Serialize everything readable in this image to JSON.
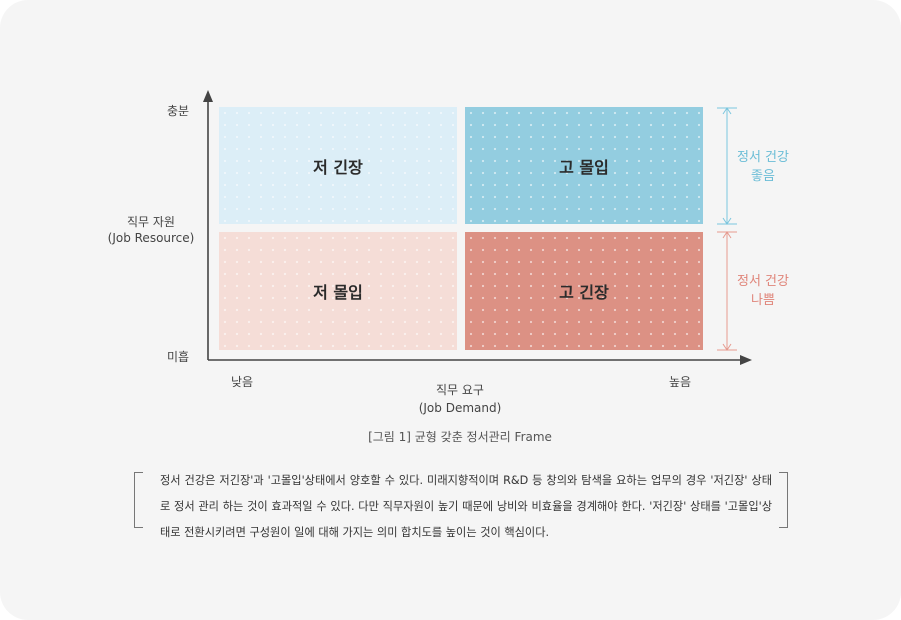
{
  "diagram": {
    "y_axis": {
      "top_label": "충분",
      "bottom_label": "미흡",
      "title_line1": "직무 자원",
      "title_line2": "(Job Resource)"
    },
    "x_axis": {
      "left_label": "낮음",
      "right_label": "높음",
      "title_line1": "직무 요구",
      "title_line2": "(Job Demand)"
    },
    "quadrants": {
      "top_left": "저 긴장",
      "top_right": "고 몰입",
      "bottom_left": "저 몰입",
      "bottom_right": "고 긴장"
    },
    "health": {
      "good_line1": "정서 건강",
      "good_line2": "좋음",
      "good_color": "#6bbdd6",
      "bad_line1": "정서 건강",
      "bad_line2": "나쁨",
      "bad_color": "#e0857a"
    }
  },
  "caption": "[그림 1] 균형 갖춘 정서관리 Frame",
  "paragraph": "정서 건강은 저긴장'과 '고몰입'상태에서 양호할 수 있다. 미래지향적이며 R&D 등 창의와 탐색을 요하는 업무의 경우 '저긴장' 상태로 정서 관리 하는 것이 효과적일 수 있다. 다만 직무자원이 높기 때문에 낭비와 비효율을 경계해야 한다. '저긴장' 상태를 '고몰입'상태로 전환시키려면 구성원이 일에 대해 가지는 의미 합치도를 높이는 것이 핵심이다."
}
